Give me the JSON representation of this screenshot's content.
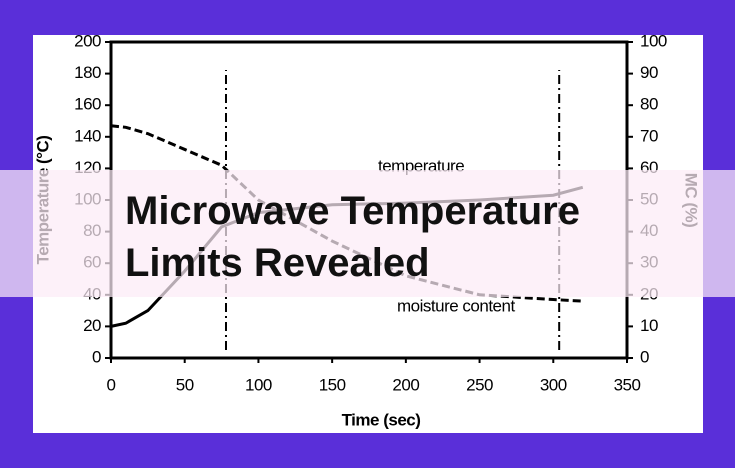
{
  "chart_data": {
    "type": "line",
    "x": [
      0,
      10,
      25,
      50,
      75,
      100,
      150,
      200,
      250,
      300,
      320
    ],
    "series": [
      {
        "name": "temperature",
        "color": "#000000",
        "axis": "y",
        "dash": false,
        "values": [
          20,
          22,
          30,
          55,
          83,
          92,
          97,
          98,
          100,
          103,
          108
        ]
      },
      {
        "name": "moisture content",
        "color": "#000000",
        "axis": "y2",
        "dash": true,
        "values": [
          73.5,
          73,
          71,
          66,
          61,
          50,
          37,
          26,
          20,
          18.5,
          18
        ]
      }
    ],
    "vlines": [
      78,
      304
    ],
    "xlabel": "Time (sec)",
    "ylabel": "Temperature (°C)",
    "y2label": "MC (%)",
    "xlim": [
      0,
      350
    ],
    "xticks": [
      0,
      50,
      100,
      150,
      200,
      250,
      300,
      350
    ],
    "ylim": [
      0,
      200
    ],
    "yticks": [
      0,
      20,
      40,
      60,
      80,
      100,
      120,
      140,
      160,
      180,
      200
    ],
    "y2lim": [
      0,
      100
    ],
    "y2ticks": [
      0,
      10,
      20,
      30,
      40,
      50,
      60,
      70,
      80,
      90,
      100
    ]
  },
  "banner": {
    "lines": [
      "Microwave Temperature",
      "Limits Revealed"
    ]
  }
}
